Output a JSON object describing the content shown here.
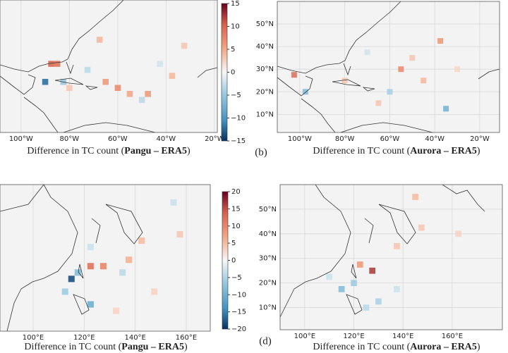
{
  "chart_data": [
    {
      "type": "heatmap",
      "xlim": [
        -108.7,
        -18.8
      ],
      "ylim": [
        4,
        59
      ],
      "clim": [
        -15,
        15
      ],
      "xticks": [
        {
          "value": -100,
          "label": "100°W"
        },
        {
          "value": -80,
          "label": "80°W"
        },
        {
          "value": -60,
          "label": "60°W"
        },
        {
          "value": -40,
          "label": "40°W"
        },
        {
          "value": -20,
          "label": "20°W"
        }
      ],
      "colorbar_ticks": [
        15,
        10,
        5,
        0,
        {
          "value": -5,
          "label": "−5"
        },
        {
          "value": -10,
          "label": "−10"
        },
        {
          "value": -15,
          "label": "−15"
        }
      ],
      "cells": [
        {
          "lon": -87.5,
          "lat": 32.5,
          "value": 10
        },
        {
          "lon": -85,
          "lat": 32.5,
          "value": 9
        },
        {
          "lon": -90,
          "lat": 25,
          "value": -12
        },
        {
          "lon": -65,
          "lat": 25,
          "value": 6
        },
        {
          "lon": -60,
          "lat": 22.5,
          "value": 7
        },
        {
          "lon": -55,
          "lat": 20,
          "value": 5
        },
        {
          "lon": -47.5,
          "lat": 20,
          "value": 6
        },
        {
          "lon": -50,
          "lat": 17.5,
          "value": -3
        },
        {
          "lon": -67.5,
          "lat": 42.5,
          "value": 4
        },
        {
          "lon": -72.5,
          "lat": 30,
          "value": -3
        },
        {
          "lon": -37.5,
          "lat": 27.5,
          "value": 4
        },
        {
          "lon": -82.5,
          "lat": 25,
          "value": -5
        },
        {
          "lon": -80,
          "lat": 22.5,
          "value": 3
        },
        {
          "lon": -32.5,
          "lat": 40,
          "value": 3
        },
        {
          "lon": -42.5,
          "lat": 32.5,
          "value": -2
        }
      ],
      "caption": {
        "prefix": "Difference in TC count (",
        "model": "Pangu – ERA5",
        "suffix": ")"
      }
    },
    {
      "type": "heatmap",
      "xlim": [
        -110,
        -11.2
      ],
      "ylim": [
        2,
        60
      ],
      "clim": [
        -15,
        15
      ],
      "xticks": [
        {
          "value": -100,
          "label": "100°W"
        },
        {
          "value": -80,
          "label": "80°W"
        },
        {
          "value": -60,
          "label": "60°W"
        },
        {
          "value": -40,
          "label": "40°W"
        },
        {
          "value": -20,
          "label": "20°W"
        }
      ],
      "yticks": [
        {
          "value": 10,
          "label": "10°N"
        },
        {
          "value": 20,
          "label": "20°N"
        },
        {
          "value": 30,
          "label": "30°N"
        },
        {
          "value": 40,
          "label": "40°N"
        },
        {
          "value": 50,
          "label": "50°N"
        }
      ],
      "cells": [
        {
          "lon": -102.5,
          "lat": 27.5,
          "value": 9
        },
        {
          "lon": -97.5,
          "lat": 20,
          "value": -6
        },
        {
          "lon": -55,
          "lat": 30,
          "value": 7
        },
        {
          "lon": -37.5,
          "lat": 42.5,
          "value": 6
        },
        {
          "lon": -35,
          "lat": 12.5,
          "value": -7
        },
        {
          "lon": -60,
          "lat": 20,
          "value": -4
        },
        {
          "lon": -45,
          "lat": 25,
          "value": 4
        },
        {
          "lon": -65,
          "lat": 15,
          "value": 3
        },
        {
          "lon": -50,
          "lat": 35,
          "value": 3
        },
        {
          "lon": -30,
          "lat": 30,
          "value": 2
        },
        {
          "lon": -70,
          "lat": 37.5,
          "value": -2
        },
        {
          "lon": -80,
          "lat": 25,
          "value": 3
        }
      ],
      "caption": {
        "prefix": "Difference in TC count (",
        "model": "Aurora – ERA5",
        "suffix": ")"
      },
      "label": "(b)"
    },
    {
      "type": "heatmap",
      "xlim": [
        87,
        169.4
      ],
      "ylim": [
        2,
        59.5
      ],
      "clim": [
        -20,
        20
      ],
      "xticks": [
        {
          "value": 100,
          "label": "100°E"
        },
        {
          "value": 120,
          "label": "120°E"
        },
        {
          "value": 140,
          "label": "140°E"
        },
        {
          "value": 160,
          "label": "160°E"
        }
      ],
      "colorbar_ticks": [
        20,
        15,
        10,
        5,
        0,
        {
          "value": -5,
          "label": "−5"
        },
        {
          "value": -10,
          "label": "−10"
        },
        {
          "value": -15,
          "label": "−15"
        },
        {
          "value": -20,
          "label": "−20"
        }
      ],
      "cells": [
        {
          "lon": 115,
          "lat": 22.5,
          "value": -18
        },
        {
          "lon": 122.5,
          "lat": 27.5,
          "value": 12
        },
        {
          "lon": 127.5,
          "lat": 27.5,
          "value": 10
        },
        {
          "lon": 117.5,
          "lat": 25,
          "value": -8
        },
        {
          "lon": 112.5,
          "lat": 17.5,
          "value": -6
        },
        {
          "lon": 122.5,
          "lat": 12.5,
          "value": -10
        },
        {
          "lon": 142.5,
          "lat": 37.5,
          "value": 5
        },
        {
          "lon": 137.5,
          "lat": 30,
          "value": 6
        },
        {
          "lon": 157.5,
          "lat": 40,
          "value": 4
        },
        {
          "lon": 132.5,
          "lat": 10,
          "value": 3
        },
        {
          "lon": 135,
          "lat": 25,
          "value": -4
        },
        {
          "lon": 147.5,
          "lat": 17.5,
          "value": 3
        },
        {
          "lon": 155,
          "lat": 52.5,
          "value": -3
        },
        {
          "lon": 122.5,
          "lat": 35,
          "value": -3
        }
      ],
      "caption": {
        "prefix": "Difference in TC count (",
        "model": "Pangu – ERA5",
        "suffix": ")"
      }
    },
    {
      "type": "heatmap",
      "xlim": [
        90,
        180.4
      ],
      "ylim": [
        1,
        60
      ],
      "clim": [
        -20,
        20
      ],
      "xticks": [
        {
          "value": 100,
          "label": "100°E"
        },
        {
          "value": 120,
          "label": "120°E"
        },
        {
          "value": 140,
          "label": "140°E"
        },
        {
          "value": 160,
          "label": "160°E"
        }
      ],
      "yticks": [
        {
          "value": 10,
          "label": "10°N"
        },
        {
          "value": 20,
          "label": "20°N"
        },
        {
          "value": 30,
          "label": "30°N"
        },
        {
          "value": 40,
          "label": "40°N"
        },
        {
          "value": 50,
          "label": "50°N"
        }
      ],
      "cells": [
        {
          "lon": 127.5,
          "lat": 25,
          "value": 16
        },
        {
          "lon": 122.5,
          "lat": 27.5,
          "value": 8
        },
        {
          "lon": 115,
          "lat": 17.5,
          "value": -8
        },
        {
          "lon": 120,
          "lat": 20,
          "value": -6
        },
        {
          "lon": 137.5,
          "lat": 35,
          "value": 4
        },
        {
          "lon": 145,
          "lat": 55,
          "value": 5
        },
        {
          "lon": 147.5,
          "lat": 42.5,
          "value": 4
        },
        {
          "lon": 125,
          "lat": 10,
          "value": -4
        },
        {
          "lon": 130,
          "lat": 12.5,
          "value": -5
        },
        {
          "lon": 162.5,
          "lat": 40,
          "value": 3
        },
        {
          "lon": 137.5,
          "lat": 17.5,
          "value": -3
        },
        {
          "lon": 110,
          "lat": 22.5,
          "value": -3
        }
      ],
      "caption": {
        "prefix": "Difference in TC count (",
        "model": "Aurora – ERA5",
        "suffix": ")"
      },
      "label": "(d)"
    }
  ]
}
